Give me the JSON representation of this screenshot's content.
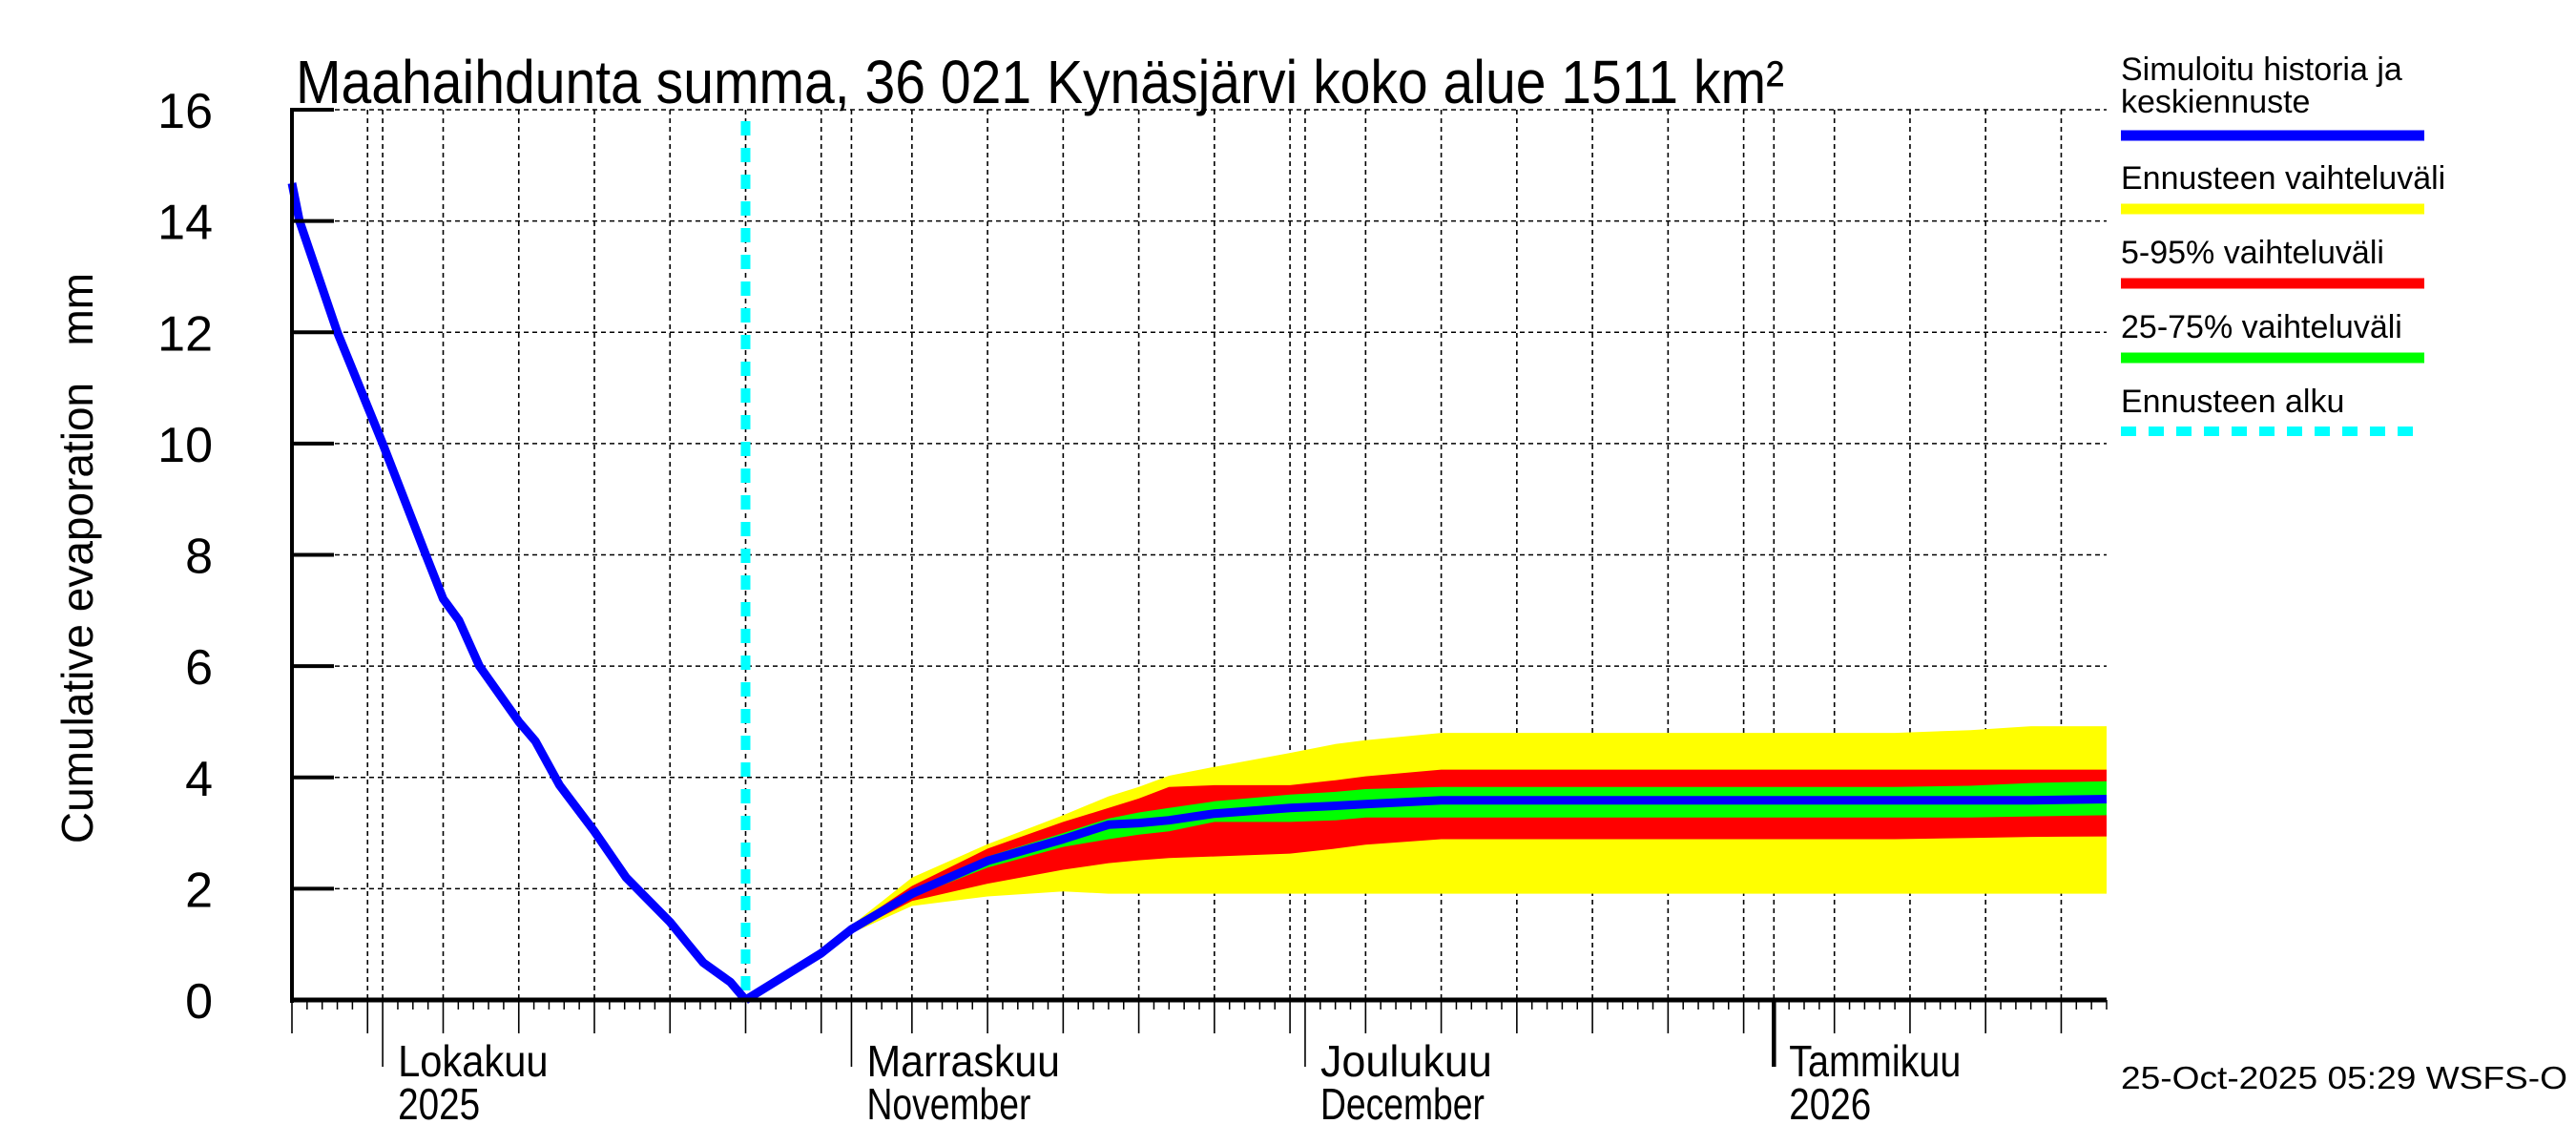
{
  "chart_data": {
    "type": "area",
    "title": "Maahaihdunta summa, 36 021 Kynäsjärvi koko alue 1511 km²",
    "ylabel": "Cumulative evaporation   mm",
    "xlabel": "",
    "ylim": [
      0,
      16
    ],
    "yticks": [
      0,
      2,
      4,
      6,
      8,
      10,
      12,
      14,
      16
    ],
    "x_start_date": "2025-09-25",
    "x_end_date": "2026-01-23",
    "forecast_start_date": "2025-10-25",
    "grid": true,
    "month_labels": [
      {
        "date": "2025-10-01",
        "line1": "Lokakuu",
        "line2": "2025"
      },
      {
        "date": "2025-11-01",
        "line1": "Marraskuu",
        "line2": "November"
      },
      {
        "date": "2025-12-01",
        "line1": "Joulukuu",
        "line2": "December"
      },
      {
        "date": "2026-01-01",
        "line1": "Tammikuu",
        "line2": "2026"
      }
    ],
    "history": {
      "name": "Simuloitu historia ja keskiennuste",
      "day_offsets": [
        0,
        0.5,
        3,
        6,
        8.85,
        10,
        11.05,
        12.4,
        15,
        16.1,
        17.7,
        20,
        22.1,
        25,
        26.2,
        27.2,
        29,
        30
      ],
      "values": [
        14.68,
        14.0,
        12.0,
        10.0,
        8.0,
        7.21,
        6.82,
        6.0,
        5.0,
        4.65,
        3.86,
        3.03,
        2.2,
        1.4,
        1.0,
        0.67,
        0.32,
        0.0
      ]
    },
    "forecast": {
      "day_offsets": [
        30,
        35,
        37,
        41,
        46,
        51,
        54,
        56,
        58,
        61,
        66,
        69,
        71,
        76,
        81,
        86,
        91,
        96,
        101,
        106,
        111,
        115,
        120
      ],
      "median": [
        0.0,
        0.84,
        1.27,
        1.91,
        2.5,
        2.89,
        3.15,
        3.18,
        3.23,
        3.35,
        3.45,
        3.49,
        3.52,
        3.59,
        3.59,
        3.59,
        3.59,
        3.59,
        3.59,
        3.59,
        3.59,
        3.59,
        3.61
      ],
      "p25": [
        0.0,
        0.84,
        1.25,
        1.85,
        2.38,
        2.75,
        2.89,
        2.97,
        3.03,
        3.2,
        3.2,
        3.23,
        3.28,
        3.28,
        3.28,
        3.28,
        3.28,
        3.28,
        3.28,
        3.28,
        3.28,
        3.3,
        3.32
      ],
      "p75": [
        0.0,
        0.84,
        1.29,
        1.97,
        2.58,
        3.0,
        3.26,
        3.37,
        3.45,
        3.57,
        3.69,
        3.74,
        3.79,
        3.83,
        3.83,
        3.83,
        3.83,
        3.83,
        3.83,
        3.83,
        3.85,
        3.9,
        3.93
      ],
      "p5": [
        0.0,
        0.84,
        1.22,
        1.78,
        2.09,
        2.34,
        2.46,
        2.51,
        2.55,
        2.58,
        2.63,
        2.72,
        2.79,
        2.89,
        2.89,
        2.89,
        2.89,
        2.89,
        2.89,
        2.89,
        2.91,
        2.93,
        2.94
      ],
      "p95": [
        0.0,
        0.84,
        1.32,
        2.05,
        2.72,
        3.2,
        3.45,
        3.62,
        3.83,
        3.86,
        3.86,
        3.95,
        4.02,
        4.14,
        4.14,
        4.14,
        4.14,
        4.14,
        4.14,
        4.14,
        4.14,
        4.14,
        4.14
      ],
      "min": [
        0.0,
        0.84,
        1.2,
        1.69,
        1.86,
        1.95,
        1.91,
        1.91,
        1.91,
        1.91,
        1.91,
        1.91,
        1.91,
        1.91,
        1.91,
        1.91,
        1.91,
        1.91,
        1.91,
        1.91,
        1.91,
        1.91,
        1.91
      ],
      "max": [
        0.0,
        0.84,
        1.34,
        2.2,
        2.8,
        3.32,
        3.66,
        3.83,
        4.03,
        4.19,
        4.44,
        4.6,
        4.67,
        4.8,
        4.8,
        4.8,
        4.8,
        4.8,
        4.8,
        4.8,
        4.85,
        4.92,
        4.92
      ]
    },
    "legend": {
      "placement": "right",
      "entries": [
        {
          "line1": "Simuloitu historia ja",
          "line2": "keskiennuste",
          "color": "#0000ff",
          "style": "solid"
        },
        {
          "line1": "Ennusteen vaihteluväli",
          "line2": "",
          "color": "#ffff00",
          "style": "solid"
        },
        {
          "line1": "5-95% vaihteluväli",
          "line2": "",
          "color": "#ff0000",
          "style": "solid"
        },
        {
          "line1": "25-75% vaihteluväli",
          "line2": "",
          "color": "#00ff00",
          "style": "solid"
        },
        {
          "line1": "Ennusteen alku",
          "line2": "",
          "color": "#00ffff",
          "style": "dashed"
        }
      ]
    },
    "colors": {
      "history": "#0000ff",
      "range": "#ffff00",
      "p5_95": "#ff0000",
      "p25_75": "#00ff00",
      "forecast_start": "#00ffff",
      "grid": "#000000"
    }
  },
  "footer": {
    "timestamp": "25-Oct-2025 05:29 WSFS-O"
  }
}
